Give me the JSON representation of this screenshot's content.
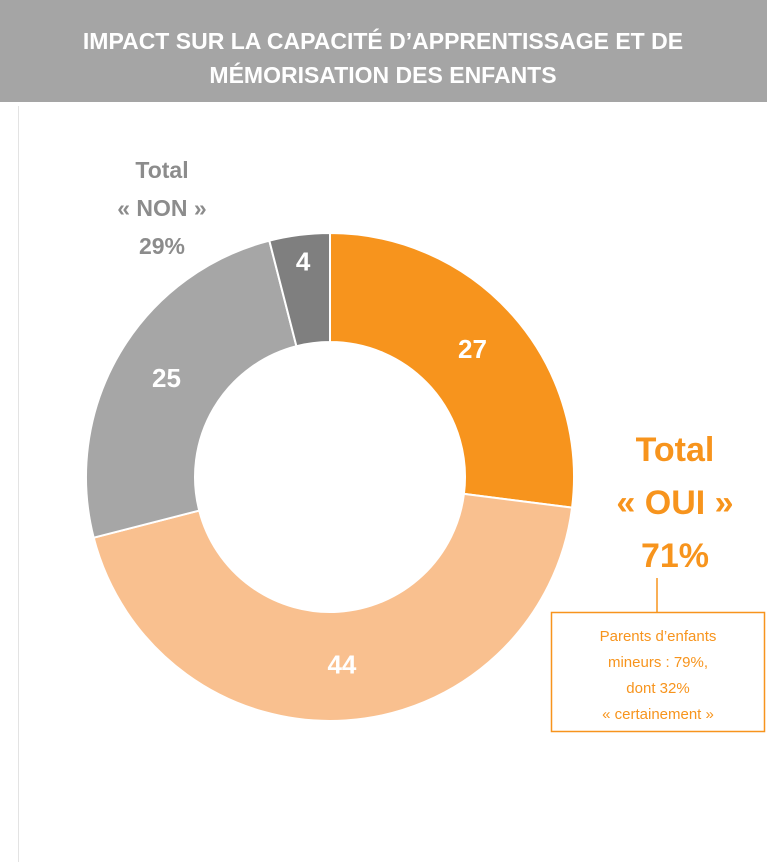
{
  "chart_data": {
    "type": "pie",
    "donut": true,
    "title": [
      "IMPACT SUR LA CAPACITÉ D’APPRENTISSAGE ET DE",
      "MÉMORISATION DES ENFANTS"
    ],
    "categories": [
      null,
      null,
      null,
      null
    ],
    "series": [
      {
        "values": [
          27,
          44,
          25,
          4
        ],
        "colors": [
          "#f7941d",
          "#f9c08f",
          "#a6a6a6",
          "#7f7f7f"
        ]
      }
    ],
    "annotations": {
      "non": [
        "Total",
        "« NON »",
        "29%"
      ],
      "oui": [
        "Total",
        "« OUI »",
        "71%"
      ],
      "note": [
        "Parents d’enfants",
        "mineurs : 79%,",
        "dont 32%",
        "« certainement »"
      ]
    }
  }
}
